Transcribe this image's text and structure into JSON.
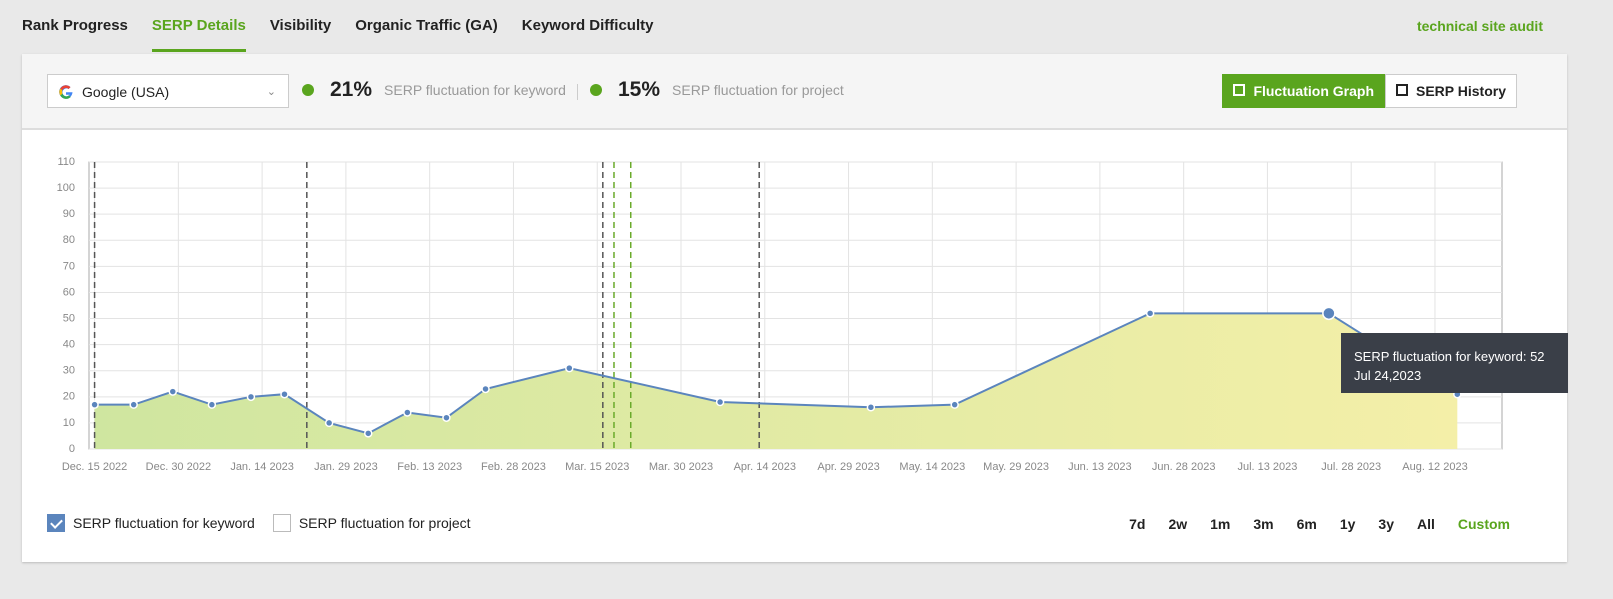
{
  "tabs": [
    "Rank Progress",
    "SERP Details",
    "Visibility",
    "Organic Traffic (GA)",
    "Keyword Difficulty"
  ],
  "audit_link": "technical site audit",
  "search_engine": "Google (USA)",
  "keyword_fluctuation": {
    "value": "21%",
    "label": "SERP fluctuation for keyword"
  },
  "project_fluctuation": {
    "value": "15%",
    "label": "SERP fluctuation for project"
  },
  "view_buttons": [
    "Fluctuation Graph",
    "SERP History"
  ],
  "legend": [
    {
      "label": "SERP fluctuation for keyword",
      "checked": true
    },
    {
      "label": "SERP fluctuation for project",
      "checked": false
    }
  ],
  "ranges": [
    "7d",
    "2w",
    "1m",
    "3m",
    "6m",
    "1y",
    "3y",
    "All",
    "Custom"
  ],
  "chart_data": {
    "type": "area",
    "color": "#5b85bd",
    "x": [
      "2022-12-15",
      "2022-12-22",
      "2022-12-29",
      "2023-01-05",
      "2023-01-12",
      "2023-01-18",
      "2023-01-26",
      "2023-02-02",
      "2023-02-09",
      "2023-02-16",
      "2023-02-23",
      "2023-03-10",
      "2023-04-06",
      "2023-05-03",
      "2023-05-18",
      "2023-06-22",
      "2023-07-24",
      "2023-08-16"
    ],
    "values": [
      17,
      17,
      22,
      17,
      20,
      21,
      10,
      6,
      14,
      12,
      23,
      31,
      18,
      16,
      17,
      52,
      52,
      21
    ],
    "xlim": [
      "2022-12-14",
      "2023-08-24"
    ],
    "xticks": [
      {
        "value": "2022-12-15",
        "label": "Dec. 15 2022"
      },
      {
        "value": "2022-12-30",
        "label": "Dec. 30 2022"
      },
      {
        "value": "2023-01-14",
        "label": "Jan. 14 2023"
      },
      {
        "value": "2023-01-29",
        "label": "Jan. 29 2023"
      },
      {
        "value": "2023-02-13",
        "label": "Feb. 13 2023"
      },
      {
        "value": "2023-02-28",
        "label": "Feb. 28 2023"
      },
      {
        "value": "2023-03-15",
        "label": "Mar. 15 2023"
      },
      {
        "value": "2023-03-30",
        "label": "Mar. 30 2023"
      },
      {
        "value": "2023-04-14",
        "label": "Apr. 14 2023"
      },
      {
        "value": "2023-04-29",
        "label": "Apr. 29 2023"
      },
      {
        "value": "2023-05-14",
        "label": "May. 14 2023"
      },
      {
        "value": "2023-05-29",
        "label": "May. 29 2023"
      },
      {
        "value": "2023-06-13",
        "label": "Jun. 13 2023"
      },
      {
        "value": "2023-06-28",
        "label": "Jun. 28 2023"
      },
      {
        "value": "2023-07-13",
        "label": "Jul. 13 2023"
      },
      {
        "value": "2023-07-28",
        "label": "Jul. 28 2023"
      },
      {
        "value": "2023-08-12",
        "label": "Aug. 12 2023"
      }
    ],
    "ylim": [
      0,
      110
    ],
    "yticks": [
      0,
      10,
      20,
      30,
      40,
      50,
      60,
      70,
      80,
      90,
      100,
      110
    ],
    "grid": true,
    "events": [
      {
        "x": "2022-12-15",
        "color": "#555555"
      },
      {
        "x": "2023-01-22",
        "color": "#555555"
      },
      {
        "x": "2023-03-16",
        "color": "#555555"
      },
      {
        "x": "2023-03-18",
        "color": "#6aaa2a"
      },
      {
        "x": "2023-03-21",
        "color": "#6aaa2a"
      },
      {
        "x": "2023-04-13",
        "color": "#555555"
      }
    ],
    "tooltip": {
      "x": "2023-07-24",
      "text": "SERP fluctuation for keyword: 52",
      "date": "Jul 24,2023"
    }
  }
}
